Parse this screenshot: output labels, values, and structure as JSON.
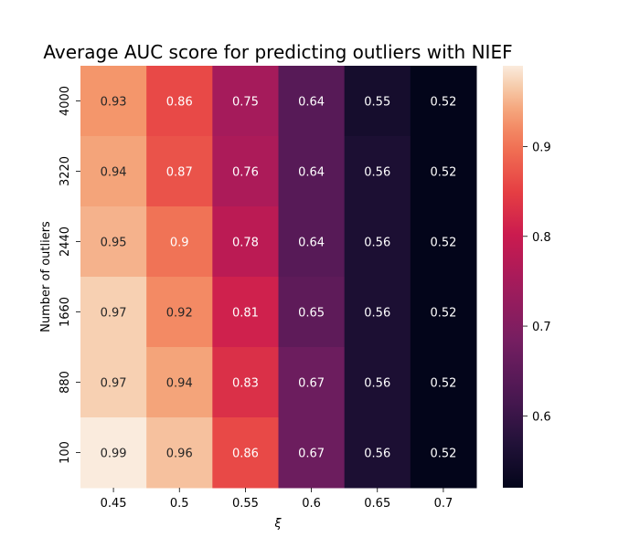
{
  "chart_data": {
    "type": "heatmap",
    "title": "Average AUC score for predicting outliers with NIEF",
    "xlabel": "ξ",
    "ylabel": "Number of outliers",
    "x_categories": [
      "0.45",
      "0.5",
      "0.55",
      "0.6",
      "0.65",
      "0.7"
    ],
    "y_categories": [
      "4000",
      "3220",
      "2440",
      "1660",
      "880",
      "100"
    ],
    "values": [
      [
        0.93,
        0.86,
        0.75,
        0.64,
        0.55,
        0.52
      ],
      [
        0.94,
        0.87,
        0.76,
        0.64,
        0.56,
        0.52
      ],
      [
        0.95,
        0.9,
        0.78,
        0.64,
        0.56,
        0.52
      ],
      [
        0.97,
        0.92,
        0.81,
        0.65,
        0.56,
        0.52
      ],
      [
        0.97,
        0.94,
        0.83,
        0.67,
        0.56,
        0.52
      ],
      [
        0.99,
        0.96,
        0.86,
        0.67,
        0.56,
        0.52
      ]
    ],
    "value_labels": [
      [
        "0.93",
        "0.86",
        "0.75",
        "0.64",
        "0.55",
        "0.52"
      ],
      [
        "0.94",
        "0.87",
        "0.76",
        "0.64",
        "0.56",
        "0.52"
      ],
      [
        "0.95",
        "0.9",
        "0.78",
        "0.64",
        "0.56",
        "0.52"
      ],
      [
        "0.97",
        "0.92",
        "0.81",
        "0.65",
        "0.56",
        "0.52"
      ],
      [
        "0.97",
        "0.94",
        "0.83",
        "0.67",
        "0.56",
        "0.52"
      ],
      [
        "0.99",
        "0.96",
        "0.86",
        "0.67",
        "0.56",
        "0.52"
      ]
    ],
    "colorbar": {
      "range": [
        0.52,
        0.99
      ],
      "ticks": [
        "0.6",
        "0.7",
        "0.8",
        "0.9"
      ],
      "colormap": "rocket"
    }
  }
}
